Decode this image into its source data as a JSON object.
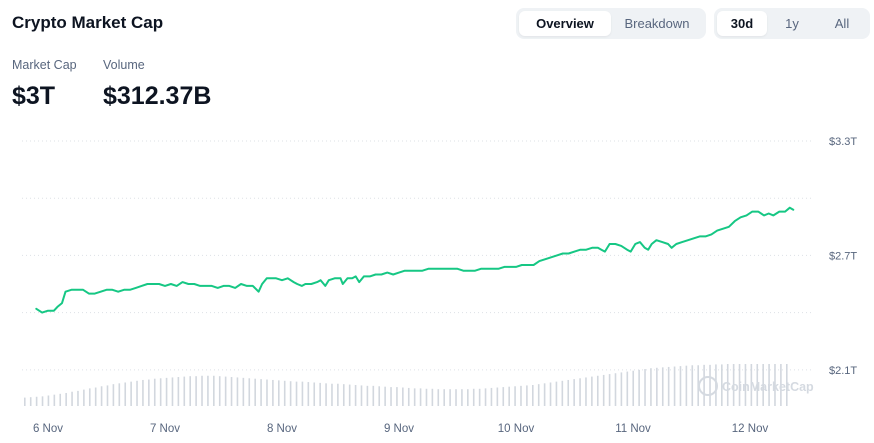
{
  "header": {
    "title": "Crypto Market Cap",
    "view_tabs": [
      {
        "label": "Overview",
        "active": true
      },
      {
        "label": "Breakdown",
        "active": false
      }
    ],
    "range_tabs": [
      {
        "label": "30d",
        "active": true
      },
      {
        "label": "1y",
        "active": false
      },
      {
        "label": "All",
        "active": false
      }
    ]
  },
  "stats": [
    {
      "label": "Market Cap",
      "value": "$3T"
    },
    {
      "label": "Volume",
      "value": "$312.37B"
    }
  ],
  "watermark": "CoinMarketCap",
  "colors": {
    "line": "#16c784",
    "grid": "#dde1e6",
    "volume": "#d2d7de",
    "text": "#58667e"
  },
  "chart_data": {
    "type": "line",
    "y_axis_unit": "USD trillions",
    "ylim": [
      1.9,
      3.3
    ],
    "y_ticks": [
      {
        "value": 3.3,
        "label": "$3.3T"
      },
      {
        "value": 2.7,
        "label": "$2.7T"
      },
      {
        "value": 2.1,
        "label": "$2.1T"
      }
    ],
    "x_ticks": [
      {
        "value": 0,
        "label": "6 Nov"
      },
      {
        "value": 1,
        "label": "7 Nov"
      },
      {
        "value": 2,
        "label": "8 Nov"
      },
      {
        "value": 3,
        "label": "9 Nov"
      },
      {
        "value": 4,
        "label": "10 Nov"
      },
      {
        "value": 5,
        "label": "11 Nov"
      },
      {
        "value": 6,
        "label": "12 Nov"
      }
    ],
    "xlim": [
      -0.1,
      6.4
    ],
    "grid": true,
    "series": [
      {
        "values": [
          [
            -0.1,
            2.42
          ],
          [
            -0.05,
            2.4
          ],
          [
            0.0,
            2.41
          ],
          [
            0.05,
            2.41
          ],
          [
            0.08,
            2.43
          ],
          [
            0.12,
            2.45
          ],
          [
            0.15,
            2.51
          ],
          [
            0.2,
            2.52
          ],
          [
            0.25,
            2.52
          ],
          [
            0.3,
            2.52
          ],
          [
            0.35,
            2.5
          ],
          [
            0.4,
            2.5
          ],
          [
            0.45,
            2.51
          ],
          [
            0.5,
            2.52
          ],
          [
            0.55,
            2.52
          ],
          [
            0.6,
            2.51
          ],
          [
            0.65,
            2.52
          ],
          [
            0.7,
            2.52
          ],
          [
            0.75,
            2.53
          ],
          [
            0.8,
            2.54
          ],
          [
            0.85,
            2.55
          ],
          [
            0.9,
            2.55
          ],
          [
            0.95,
            2.55
          ],
          [
            1.0,
            2.54
          ],
          [
            1.05,
            2.55
          ],
          [
            1.1,
            2.54
          ],
          [
            1.15,
            2.56
          ],
          [
            1.2,
            2.55
          ],
          [
            1.25,
            2.55
          ],
          [
            1.3,
            2.54
          ],
          [
            1.35,
            2.54
          ],
          [
            1.4,
            2.54
          ],
          [
            1.45,
            2.53
          ],
          [
            1.5,
            2.54
          ],
          [
            1.55,
            2.54
          ],
          [
            1.6,
            2.53
          ],
          [
            1.65,
            2.55
          ],
          [
            1.7,
            2.54
          ],
          [
            1.75,
            2.54
          ],
          [
            1.8,
            2.51
          ],
          [
            1.83,
            2.55
          ],
          [
            1.87,
            2.58
          ],
          [
            1.95,
            2.58
          ],
          [
            2.0,
            2.57
          ],
          [
            2.05,
            2.58
          ],
          [
            2.1,
            2.56
          ],
          [
            2.13,
            2.55
          ],
          [
            2.17,
            2.54
          ],
          [
            2.2,
            2.55
          ],
          [
            2.25,
            2.55
          ],
          [
            2.3,
            2.56
          ],
          [
            2.33,
            2.57
          ],
          [
            2.37,
            2.54
          ],
          [
            2.4,
            2.57
          ],
          [
            2.45,
            2.58
          ],
          [
            2.5,
            2.58
          ],
          [
            2.52,
            2.55
          ],
          [
            2.56,
            2.58
          ],
          [
            2.6,
            2.58
          ],
          [
            2.63,
            2.59
          ],
          [
            2.66,
            2.56
          ],
          [
            2.7,
            2.59
          ],
          [
            2.75,
            2.59
          ],
          [
            2.8,
            2.6
          ],
          [
            2.85,
            2.6
          ],
          [
            2.9,
            2.61
          ],
          [
            2.95,
            2.6
          ],
          [
            3.0,
            2.61
          ],
          [
            3.05,
            2.62
          ],
          [
            3.1,
            2.62
          ],
          [
            3.15,
            2.62
          ],
          [
            3.2,
            2.62
          ],
          [
            3.25,
            2.63
          ],
          [
            3.3,
            2.63
          ],
          [
            3.35,
            2.63
          ],
          [
            3.4,
            2.63
          ],
          [
            3.45,
            2.63
          ],
          [
            3.5,
            2.63
          ],
          [
            3.55,
            2.62
          ],
          [
            3.6,
            2.62
          ],
          [
            3.65,
            2.62
          ],
          [
            3.7,
            2.63
          ],
          [
            3.75,
            2.63
          ],
          [
            3.8,
            2.63
          ],
          [
            3.85,
            2.63
          ],
          [
            3.9,
            2.64
          ],
          [
            3.95,
            2.64
          ],
          [
            4.0,
            2.64
          ],
          [
            4.05,
            2.65
          ],
          [
            4.1,
            2.65
          ],
          [
            4.15,
            2.65
          ],
          [
            4.2,
            2.67
          ],
          [
            4.25,
            2.68
          ],
          [
            4.3,
            2.69
          ],
          [
            4.35,
            2.7
          ],
          [
            4.4,
            2.71
          ],
          [
            4.45,
            2.71
          ],
          [
            4.5,
            2.72
          ],
          [
            4.55,
            2.73
          ],
          [
            4.6,
            2.73
          ],
          [
            4.65,
            2.74
          ],
          [
            4.7,
            2.74
          ],
          [
            4.73,
            2.73
          ],
          [
            4.76,
            2.72
          ],
          [
            4.8,
            2.76
          ],
          [
            4.85,
            2.76
          ],
          [
            4.9,
            2.75
          ],
          [
            4.95,
            2.73
          ],
          [
            4.98,
            2.72
          ],
          [
            5.02,
            2.76
          ],
          [
            5.06,
            2.77
          ],
          [
            5.1,
            2.74
          ],
          [
            5.13,
            2.73
          ],
          [
            5.16,
            2.76
          ],
          [
            5.2,
            2.78
          ],
          [
            5.25,
            2.77
          ],
          [
            5.3,
            2.76
          ],
          [
            5.33,
            2.74
          ],
          [
            5.37,
            2.76
          ],
          [
            5.42,
            2.77
          ],
          [
            5.47,
            2.78
          ],
          [
            5.52,
            2.79
          ],
          [
            5.57,
            2.8
          ],
          [
            5.62,
            2.8
          ],
          [
            5.67,
            2.81
          ],
          [
            5.72,
            2.83
          ],
          [
            5.77,
            2.84
          ],
          [
            5.82,
            2.85
          ],
          [
            5.87,
            2.88
          ],
          [
            5.92,
            2.9
          ],
          [
            5.97,
            2.91
          ],
          [
            6.02,
            2.93
          ],
          [
            6.07,
            2.93
          ],
          [
            6.12,
            2.91
          ],
          [
            6.16,
            2.92
          ],
          [
            6.2,
            2.91
          ],
          [
            6.25,
            2.93
          ],
          [
            6.3,
            2.93
          ],
          [
            6.34,
            2.95
          ],
          [
            6.37,
            2.94
          ]
        ]
      }
    ],
    "volume_bars": [
      0.2,
      0.21,
      0.22,
      0.23,
      0.25,
      0.27,
      0.29,
      0.31,
      0.34,
      0.36,
      0.39,
      0.42,
      0.44,
      0.47,
      0.49,
      0.52,
      0.54,
      0.56,
      0.58,
      0.6,
      0.62,
      0.63,
      0.65,
      0.66,
      0.67,
      0.68,
      0.69,
      0.7,
      0.71,
      0.71,
      0.72,
      0.72,
      0.72,
      0.71,
      0.7,
      0.69,
      0.68,
      0.67,
      0.66,
      0.65,
      0.64,
      0.63,
      0.62,
      0.61,
      0.6,
      0.59,
      0.58,
      0.58,
      0.57,
      0.56,
      0.55,
      0.54,
      0.53,
      0.53,
      0.52,
      0.51,
      0.5,
      0.49,
      0.48,
      0.48,
      0.47,
      0.46,
      0.45,
      0.45,
      0.44,
      0.43,
      0.42,
      0.42,
      0.41,
      0.41,
      0.4,
      0.4,
      0.4,
      0.4,
      0.4,
      0.4,
      0.41,
      0.41,
      0.42,
      0.43,
      0.44,
      0.45,
      0.46,
      0.47,
      0.48,
      0.49,
      0.5,
      0.52,
      0.54,
      0.56,
      0.58,
      0.6,
      0.62,
      0.64,
      0.66,
      0.68,
      0.7,
      0.72,
      0.74,
      0.76,
      0.78,
      0.8,
      0.82,
      0.84,
      0.86,
      0.88,
      0.9,
      0.91,
      0.92,
      0.93,
      0.94,
      0.95,
      0.96,
      0.97,
      0.97,
      0.98,
      0.98,
      0.99,
      0.99,
      1.0,
      1.0,
      1.0,
      1.0,
      1.0,
      1.0,
      1.0,
      1.0,
      1.0,
      1.0,
      1.0
    ]
  }
}
